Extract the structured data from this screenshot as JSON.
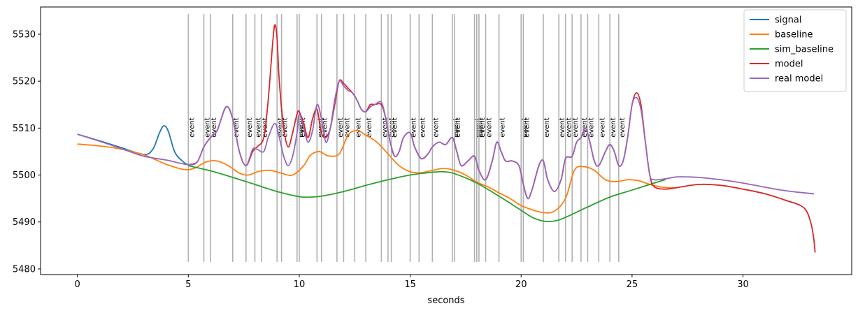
{
  "chart_data": {
    "type": "line",
    "title": "",
    "xlabel": "seconds",
    "ylabel": "",
    "xlim": [
      -1.66,
      34.9
    ],
    "ylim": [
      5478.8,
      5535.8
    ],
    "xticks": [
      0,
      5,
      10,
      15,
      20,
      25,
      30
    ],
    "yticks": [
      5480,
      5490,
      5500,
      5510,
      5520,
      5530
    ],
    "grid": false,
    "legend_position": "top-right",
    "event_label": "event",
    "event_line_range": [
      5481.5,
      5534.3
    ],
    "event_label_y": 5508,
    "events": [
      5.0,
      5.7,
      6.0,
      7.0,
      7.6,
      8.0,
      8.3,
      9.0,
      9.2,
      9.9,
      10.0,
      10.8,
      11.0,
      11.7,
      12.0,
      12.5,
      13.0,
      13.7,
      14.0,
      14.15,
      15.0,
      15.4,
      16.0,
      16.9,
      17.0,
      17.9,
      18.0,
      18.1,
      18.4,
      19.0,
      20.0,
      20.1,
      21.0,
      21.7,
      22.0,
      22.3,
      22.7,
      23.0,
      23.5,
      24.0,
      24.4
    ],
    "series": [
      {
        "name": "signal",
        "color": "#1f77b4",
        "x": [
          0,
          1,
          2,
          3,
          3.4,
          3.7,
          3.9,
          4.1,
          4.4,
          4.8,
          5.0
        ],
        "y": [
          5508.7,
          5507.3,
          5505.8,
          5504.4,
          5505.5,
          5509.0,
          5510.5,
          5509.3,
          5504.8,
          5502.7,
          5502.2
        ]
      },
      {
        "name": "baseline",
        "color": "#ff7f0e",
        "x": [
          0,
          1,
          2,
          3,
          4,
          4.8,
          5.3,
          5.8,
          6.3,
          6.8,
          7.3,
          7.7,
          8.2,
          8.7,
          9.2,
          9.7,
          10.2,
          10.5,
          10.9,
          11.3,
          11.8,
          12.2,
          12.6,
          13.0,
          13.5,
          14.0,
          14.5,
          15.0,
          15.5,
          16.0,
          16.5,
          17.0,
          17.5,
          18.0,
          18.5,
          19.0,
          19.5,
          20.0,
          20.5,
          21.0,
          21.5,
          22.0,
          22.4,
          22.8,
          23.3,
          23.8,
          24.3,
          24.8,
          25.3,
          25.8,
          26.4,
          27.0
        ],
        "y": [
          5506.6,
          5506.2,
          5505.5,
          5504.3,
          5502.3,
          5501.2,
          5501.5,
          5502.8,
          5503.0,
          5502.0,
          5500.4,
          5500.0,
          5500.8,
          5501.0,
          5500.4,
          5500.0,
          5502.0,
          5504.2,
          5505.0,
          5504.1,
          5504.5,
          5508.5,
          5509.5,
          5508.5,
          5507.0,
          5504.5,
          5502.0,
          5500.7,
          5500.5,
          5501.0,
          5501.4,
          5501.0,
          5500.0,
          5498.5,
          5497.5,
          5496.2,
          5495.0,
          5493.5,
          5492.6,
          5492.0,
          5492.3,
          5495.0,
          5501.0,
          5501.8,
          5501.0,
          5499.0,
          5498.6,
          5499.0,
          5498.8,
          5498.0,
          5497.4,
          5497.3
        ]
      },
      {
        "name": "sim_baseline",
        "color": "#2ca02c",
        "x": [
          5.0,
          6.0,
          7.0,
          8.0,
          9.0,
          10.0,
          10.5,
          11.0,
          12.0,
          13.0,
          14.0,
          15.0,
          16.0,
          16.5,
          17.0,
          18.0,
          19.0,
          20.0,
          20.5,
          21.0,
          21.5,
          22.0,
          23.0,
          24.0,
          25.0,
          26.0,
          26.5
        ],
        "y": [
          5502.0,
          5500.9,
          5499.5,
          5498.0,
          5496.5,
          5495.4,
          5495.3,
          5495.5,
          5496.5,
          5497.8,
          5499.0,
          5500.0,
          5500.6,
          5500.7,
          5500.3,
          5498.3,
          5495.5,
          5492.5,
          5491.0,
          5490.2,
          5490.2,
          5491.0,
          5493.2,
          5495.3,
          5496.8,
          5498.3,
          5499.0
        ]
      },
      {
        "name": "model",
        "color": "#d62728",
        "x": [
          5.0,
          5.4,
          5.7,
          6.0,
          6.3,
          6.7,
          7.0,
          7.3,
          7.6,
          7.9,
          8.1,
          8.4,
          8.6,
          8.8,
          8.9,
          9.0,
          9.1,
          9.3,
          9.5,
          9.7,
          9.9,
          10.0,
          10.2,
          10.4,
          10.6,
          10.8,
          11.0,
          11.2,
          11.4,
          11.6,
          11.8,
          12.0,
          12.2,
          12.4,
          12.6,
          12.8,
          13.0,
          13.2,
          13.4,
          13.7,
          13.9,
          14.1,
          14.3,
          14.5,
          14.7,
          15.0,
          15.2,
          15.5,
          15.8,
          16.0,
          16.3,
          16.6,
          16.9,
          17.1,
          17.3,
          17.6,
          17.9,
          18.1,
          18.4,
          18.7,
          18.9,
          19.1,
          19.3,
          19.6,
          19.9,
          20.1,
          20.3,
          20.5,
          20.8,
          21.0,
          21.2,
          21.5,
          21.8,
          22.0,
          22.3,
          22.5,
          22.7,
          22.9,
          23.1,
          23.3,
          23.5,
          23.8,
          24.0,
          24.2,
          24.4,
          24.6,
          24.8,
          25.0,
          25.2,
          25.4,
          25.6,
          25.8,
          26.0,
          26.5,
          27.0,
          28.0,
          29.0,
          30.0,
          31.0,
          32.0,
          32.6,
          32.9,
          33.1,
          33.2,
          33.25
        ],
        "y": [
          5502.2,
          5502.8,
          5506.0,
          5508.0,
          5509.5,
          5514.5,
          5512.0,
          5505.0,
          5502.0,
          5505.0,
          5506.0,
          5508.0,
          5516.0,
          5528.0,
          5532.0,
          5529.0,
          5520.0,
          5510.0,
          5506.0,
          5509.0,
          5513.0,
          5513.5,
          5511.0,
          5508.0,
          5512.0,
          5514.0,
          5509.0,
          5508.0,
          5510.0,
          5515.0,
          5520.0,
          5519.5,
          5518.5,
          5517.5,
          5516.0,
          5514.0,
          5513.5,
          5515.0,
          5515.0,
          5515.0,
          5512.0,
          5507.0,
          5504.0,
          5505.0,
          5508.0,
          5509.0,
          5506.0,
          5503.5,
          5504.5,
          5506.0,
          5507.0,
          5506.5,
          5508.0,
          5505.0,
          5502.0,
          5503.0,
          5504.0,
          5501.0,
          5499.0,
          5503.0,
          5507.0,
          5505.0,
          5503.0,
          5503.0,
          5502.0,
          5498.0,
          5495.0,
          5497.0,
          5502.0,
          5503.0,
          5499.0,
          5496.5,
          5499.0,
          5503.5,
          5504.0,
          5507.0,
          5508.0,
          5510.0,
          5507.0,
          5503.0,
          5502.0,
          5505.0,
          5506.5,
          5505.0,
          5502.0,
          5503.0,
          5508.0,
          5515.0,
          5517.5,
          5515.0,
          5507.0,
          5500.0,
          5497.5,
          5497.0,
          5497.3,
          5498.0,
          5497.8,
          5497.0,
          5496.0,
          5494.5,
          5493.5,
          5492.0,
          5489.0,
          5486.0,
          5483.5
        ]
      },
      {
        "name": "real model",
        "color": "#9467bd",
        "x": [
          0,
          1,
          2,
          3,
          4,
          5.0,
          5.4,
          5.7,
          6.0,
          6.3,
          6.7,
          7.0,
          7.3,
          7.6,
          7.9,
          8.1,
          8.4,
          8.6,
          8.9,
          9.1,
          9.3,
          9.5,
          9.7,
          9.9,
          10.0,
          10.2,
          10.4,
          10.6,
          10.8,
          11.0,
          11.2,
          11.4,
          11.6,
          11.8,
          12.0,
          12.2,
          12.4,
          12.6,
          12.8,
          13.0,
          13.2,
          13.4,
          13.7,
          13.9,
          14.1,
          14.3,
          14.5,
          14.7,
          15.0,
          15.2,
          15.5,
          15.8,
          16.0,
          16.3,
          16.6,
          16.9,
          17.1,
          17.3,
          17.6,
          17.9,
          18.1,
          18.4,
          18.7,
          18.9,
          19.1,
          19.3,
          19.6,
          19.9,
          20.1,
          20.3,
          20.5,
          20.8,
          21.0,
          21.2,
          21.5,
          21.8,
          22.0,
          22.3,
          22.5,
          22.7,
          22.9,
          23.1,
          23.3,
          23.5,
          23.8,
          24.0,
          24.2,
          24.4,
          24.6,
          24.8,
          25.0,
          25.2,
          25.4,
          25.6,
          25.8,
          26.0,
          26.5,
          27.0,
          27.5,
          28.0,
          29.0,
          30.0,
          31.0,
          32.0,
          33.2
        ],
        "y": [
          5508.7,
          5507.2,
          5505.6,
          5504.0,
          5503.2,
          5502.2,
          5502.8,
          5506.0,
          5508.0,
          5509.5,
          5514.5,
          5512.0,
          5505.0,
          5502.0,
          5505.5,
          5505.5,
          5505.0,
          5508.0,
          5511.0,
          5508.0,
          5504.0,
          5502.0,
          5504.0,
          5509.0,
          5513.0,
          5510.0,
          5507.0,
          5509.5,
          5515.0,
          5512.0,
          5507.0,
          5510.0,
          5516.0,
          5520.0,
          5519.0,
          5518.0,
          5517.5,
          5516.0,
          5514.0,
          5513.5,
          5514.5,
          5515.0,
          5515.5,
          5512.0,
          5507.0,
          5504.0,
          5505.0,
          5508.0,
          5509.0,
          5506.0,
          5503.5,
          5504.5,
          5506.0,
          5507.0,
          5506.5,
          5508.0,
          5505.0,
          5502.0,
          5503.0,
          5504.0,
          5501.0,
          5499.0,
          5503.0,
          5507.0,
          5505.0,
          5503.0,
          5503.0,
          5502.0,
          5498.0,
          5495.0,
          5497.0,
          5502.0,
          5503.0,
          5499.0,
          5496.5,
          5499.0,
          5503.5,
          5504.0,
          5507.0,
          5508.0,
          5510.0,
          5507.0,
          5503.0,
          5502.0,
          5505.0,
          5506.5,
          5505.0,
          5502.0,
          5503.0,
          5508.0,
          5515.0,
          5516.5,
          5514.0,
          5507.0,
          5500.0,
          5499.0,
          5499.2,
          5499.6,
          5499.6,
          5499.5,
          5499.0,
          5498.3,
          5497.4,
          5496.6,
          5496.0
        ]
      }
    ]
  }
}
